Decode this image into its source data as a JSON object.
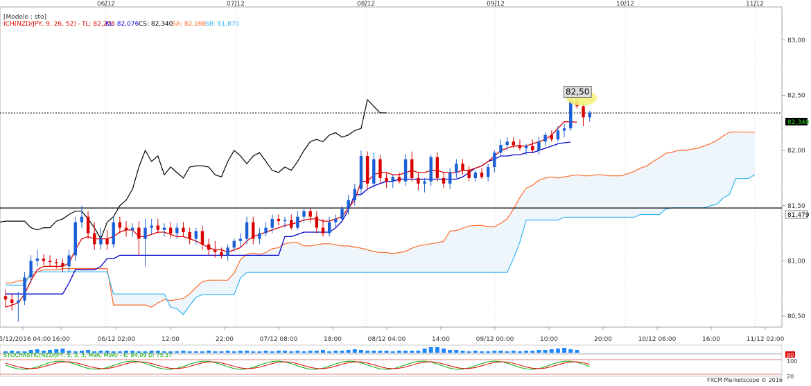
{
  "legend": {
    "model": "[Modele : sto]",
    "ich": "ICH(NZD/JPY, 9, 26, 52)  -",
    "tl": "TL: 82,256",
    "kl": "KL: 82,076",
    "cs": "CS: 82,340",
    "sa": "SA: 82,166",
    "sb": "SB: 81,870"
  },
  "top_dates": [
    "06/12",
    "07/12",
    "08/12",
    "09/12",
    "10/12",
    "11/12"
  ],
  "bottom_times": [
    "05/12/2016 04:00",
    "16:00",
    "06/12 02:00",
    "12:00",
    "22:00",
    "07/12 08:00",
    "18:00",
    "08/12 04:00",
    "14:00",
    "09/12 00:00",
    "10:00",
    "20:00",
    "10/12 06:00",
    "16:00",
    "11/12 02:00"
  ],
  "price_axis": [
    "83,00",
    "82,50",
    "82,00",
    "81,50",
    "81,00",
    "80,50"
  ],
  "current_price": "82,340",
  "hline_price": "81,479",
  "callout": "82,50",
  "stoch": {
    "label": "STOCHASTIC(NZD/JPY, 5, 3, 3, MVA, MVA) -   K: 84,09   D: 75,37",
    "levels": [
      "80",
      "100",
      "20"
    ]
  },
  "footer": "FXCM Marketscope © 2016",
  "colors": {
    "background": "#ffffff",
    "tenkan": "#dd0000",
    "kijun": "#0000cc",
    "chikou": "#000000",
    "senkou_a": "#ff6a2a",
    "senkou_b": "#33b5f0",
    "cloud": "#eef6fc",
    "bull": "#1a5fd6",
    "bear": "#d90000",
    "volume": "#1e88ff",
    "stoch_k": "#00aa00",
    "stoch_d": "#dd0000",
    "callout_bg": "#f2f27a"
  },
  "chart_data": {
    "type": "candlestick",
    "symbol": "NZD/JPY",
    "timeframe": "H1",
    "ylim": [
      80.4,
      83.3
    ],
    "current_price": 82.34,
    "horizontal_line": 81.479,
    "candles": [
      {
        "o": 80.68,
        "h": 80.74,
        "l": 80.58,
        "c": 80.65
      },
      {
        "o": 80.65,
        "h": 80.7,
        "l": 80.55,
        "c": 80.62
      },
      {
        "o": 80.62,
        "h": 80.72,
        "l": 80.45,
        "c": 80.64
      },
      {
        "o": 80.64,
        "h": 80.9,
        "l": 80.6,
        "c": 80.85
      },
      {
        "o": 80.85,
        "h": 81.05,
        "l": 80.8,
        "c": 81.0
      },
      {
        "o": 81.0,
        "h": 81.1,
        "l": 80.95,
        "c": 81.02
      },
      {
        "o": 81.02,
        "h": 81.06,
        "l": 80.96,
        "c": 81.0
      },
      {
        "o": 81.0,
        "h": 81.05,
        "l": 80.95,
        "c": 80.99
      },
      {
        "o": 80.99,
        "h": 81.02,
        "l": 80.93,
        "c": 80.98
      },
      {
        "o": 80.98,
        "h": 81.02,
        "l": 80.9,
        "c": 80.95
      },
      {
        "o": 80.95,
        "h": 81.1,
        "l": 80.9,
        "c": 81.05
      },
      {
        "o": 81.05,
        "h": 81.4,
        "l": 81.0,
        "c": 81.35
      },
      {
        "o": 81.35,
        "h": 81.5,
        "l": 81.3,
        "c": 81.4
      },
      {
        "o": 81.4,
        "h": 81.45,
        "l": 81.2,
        "c": 81.25
      },
      {
        "o": 81.25,
        "h": 81.35,
        "l": 81.1,
        "c": 81.15
      },
      {
        "o": 81.15,
        "h": 81.3,
        "l": 81.1,
        "c": 81.2
      },
      {
        "o": 81.2,
        "h": 81.28,
        "l": 81.1,
        "c": 81.15
      },
      {
        "o": 81.15,
        "h": 81.4,
        "l": 81.12,
        "c": 81.35
      },
      {
        "o": 81.35,
        "h": 81.4,
        "l": 81.25,
        "c": 81.3
      },
      {
        "o": 81.3,
        "h": 81.36,
        "l": 81.22,
        "c": 81.28
      },
      {
        "o": 81.28,
        "h": 81.34,
        "l": 81.22,
        "c": 81.3
      },
      {
        "o": 81.3,
        "h": 81.36,
        "l": 81.05,
        "c": 81.2
      },
      {
        "o": 81.2,
        "h": 81.38,
        "l": 80.95,
        "c": 81.3
      },
      {
        "o": 81.3,
        "h": 81.38,
        "l": 81.24,
        "c": 81.32
      },
      {
        "o": 81.32,
        "h": 81.38,
        "l": 81.25,
        "c": 81.28
      },
      {
        "o": 81.28,
        "h": 81.34,
        "l": 81.22,
        "c": 81.3
      },
      {
        "o": 81.3,
        "h": 81.35,
        "l": 81.2,
        "c": 81.25
      },
      {
        "o": 81.25,
        "h": 81.34,
        "l": 81.2,
        "c": 81.3
      },
      {
        "o": 81.3,
        "h": 81.35,
        "l": 81.22,
        "c": 81.26
      },
      {
        "o": 81.26,
        "h": 81.3,
        "l": 81.15,
        "c": 81.2
      },
      {
        "o": 81.2,
        "h": 81.3,
        "l": 81.15,
        "c": 81.27
      },
      {
        "o": 81.27,
        "h": 81.32,
        "l": 81.1,
        "c": 81.15
      },
      {
        "o": 81.15,
        "h": 81.2,
        "l": 81.05,
        "c": 81.1
      },
      {
        "o": 81.1,
        "h": 81.18,
        "l": 81.03,
        "c": 81.08
      },
      {
        "o": 81.08,
        "h": 81.12,
        "l": 81.02,
        "c": 81.05
      },
      {
        "o": 81.05,
        "h": 81.15,
        "l": 81.0,
        "c": 81.12
      },
      {
        "o": 81.12,
        "h": 81.2,
        "l": 81.08,
        "c": 81.18
      },
      {
        "o": 81.18,
        "h": 81.25,
        "l": 81.12,
        "c": 81.2
      },
      {
        "o": 81.2,
        "h": 81.4,
        "l": 81.15,
        "c": 81.35
      },
      {
        "o": 81.35,
        "h": 81.4,
        "l": 81.15,
        "c": 81.2
      },
      {
        "o": 81.2,
        "h": 81.3,
        "l": 81.15,
        "c": 81.25
      },
      {
        "o": 81.25,
        "h": 81.35,
        "l": 81.22,
        "c": 81.3
      },
      {
        "o": 81.3,
        "h": 81.42,
        "l": 81.25,
        "c": 81.38
      },
      {
        "o": 81.38,
        "h": 81.42,
        "l": 81.32,
        "c": 81.36
      },
      {
        "o": 81.36,
        "h": 81.4,
        "l": 81.3,
        "c": 81.37
      },
      {
        "o": 81.37,
        "h": 81.42,
        "l": 81.28,
        "c": 81.3
      },
      {
        "o": 81.3,
        "h": 81.45,
        "l": 81.28,
        "c": 81.4
      },
      {
        "o": 81.4,
        "h": 81.48,
        "l": 81.35,
        "c": 81.45
      },
      {
        "o": 81.45,
        "h": 81.48,
        "l": 81.35,
        "c": 81.4
      },
      {
        "o": 81.4,
        "h": 81.45,
        "l": 81.25,
        "c": 81.3
      },
      {
        "o": 81.3,
        "h": 81.38,
        "l": 81.22,
        "c": 81.25
      },
      {
        "o": 81.25,
        "h": 81.4,
        "l": 81.22,
        "c": 81.35
      },
      {
        "o": 81.35,
        "h": 81.42,
        "l": 81.3,
        "c": 81.38
      },
      {
        "o": 81.38,
        "h": 81.5,
        "l": 81.35,
        "c": 81.47
      },
      {
        "o": 81.47,
        "h": 81.6,
        "l": 81.42,
        "c": 81.55
      },
      {
        "o": 81.55,
        "h": 81.7,
        "l": 81.5,
        "c": 81.65
      },
      {
        "o": 81.65,
        "h": 82.0,
        "l": 81.6,
        "c": 81.95
      },
      {
        "o": 81.95,
        "h": 81.99,
        "l": 81.65,
        "c": 81.7
      },
      {
        "o": 81.7,
        "h": 81.98,
        "l": 81.66,
        "c": 81.92
      },
      {
        "o": 81.92,
        "h": 81.96,
        "l": 81.7,
        "c": 81.75
      },
      {
        "o": 81.75,
        "h": 81.8,
        "l": 81.66,
        "c": 81.72
      },
      {
        "o": 81.72,
        "h": 81.78,
        "l": 81.66,
        "c": 81.76
      },
      {
        "o": 81.76,
        "h": 81.8,
        "l": 81.7,
        "c": 81.72
      },
      {
        "o": 81.72,
        "h": 81.97,
        "l": 81.68,
        "c": 81.92
      },
      {
        "o": 81.92,
        "h": 81.99,
        "l": 81.72,
        "c": 81.75
      },
      {
        "o": 81.75,
        "h": 81.8,
        "l": 81.64,
        "c": 81.7
      },
      {
        "o": 81.7,
        "h": 81.75,
        "l": 81.62,
        "c": 81.72
      },
      {
        "o": 81.72,
        "h": 81.96,
        "l": 81.68,
        "c": 81.94
      },
      {
        "o": 81.94,
        "h": 81.98,
        "l": 81.72,
        "c": 81.75
      },
      {
        "o": 81.75,
        "h": 81.8,
        "l": 81.66,
        "c": 81.7
      },
      {
        "o": 81.7,
        "h": 81.84,
        "l": 81.65,
        "c": 81.8
      },
      {
        "o": 81.8,
        "h": 81.92,
        "l": 81.75,
        "c": 81.88
      },
      {
        "o": 81.88,
        "h": 81.92,
        "l": 81.78,
        "c": 81.82
      },
      {
        "o": 81.82,
        "h": 81.86,
        "l": 81.72,
        "c": 81.75
      },
      {
        "o": 81.75,
        "h": 81.82,
        "l": 81.72,
        "c": 81.8
      },
      {
        "o": 81.8,
        "h": 81.84,
        "l": 81.74,
        "c": 81.76
      },
      {
        "o": 81.76,
        "h": 81.88,
        "l": 81.72,
        "c": 81.85
      },
      {
        "o": 81.85,
        "h": 82.0,
        "l": 81.8,
        "c": 81.98
      },
      {
        "o": 81.98,
        "h": 82.1,
        "l": 81.95,
        "c": 82.05
      },
      {
        "o": 82.05,
        "h": 82.12,
        "l": 82.0,
        "c": 82.08
      },
      {
        "o": 82.08,
        "h": 82.12,
        "l": 82.02,
        "c": 82.05
      },
      {
        "o": 82.05,
        "h": 82.1,
        "l": 82.0,
        "c": 82.02
      },
      {
        "o": 82.02,
        "h": 82.06,
        "l": 81.96,
        "c": 82.04
      },
      {
        "o": 82.04,
        "h": 82.1,
        "l": 81.98,
        "c": 82.0
      },
      {
        "o": 82.0,
        "h": 82.12,
        "l": 81.96,
        "c": 82.08
      },
      {
        "o": 82.08,
        "h": 82.16,
        "l": 82.04,
        "c": 82.14
      },
      {
        "o": 82.14,
        "h": 82.18,
        "l": 82.08,
        "c": 82.1
      },
      {
        "o": 82.1,
        "h": 82.22,
        "l": 82.08,
        "c": 82.18
      },
      {
        "o": 82.18,
        "h": 82.24,
        "l": 82.12,
        "c": 82.2
      },
      {
        "o": 82.2,
        "h": 82.5,
        "l": 82.18,
        "c": 82.45
      },
      {
        "o": 82.45,
        "h": 82.48,
        "l": 82.38,
        "c": 82.4
      },
      {
        "o": 82.4,
        "h": 82.42,
        "l": 82.22,
        "c": 82.3
      },
      {
        "o": 82.3,
        "h": 82.36,
        "l": 82.26,
        "c": 82.34
      }
    ],
    "tenkan_sen": [
      80.58,
      80.6,
      80.62,
      80.7,
      80.82,
      80.92,
      80.95,
      80.95,
      80.95,
      80.95,
      80.98,
      81.1,
      81.2,
      81.22,
      81.2,
      81.2,
      81.2,
      81.22,
      81.26,
      81.28,
      81.28,
      81.22,
      81.22,
      81.24,
      81.26,
      81.26,
      81.24,
      81.22,
      81.22,
      81.2,
      81.18,
      81.15,
      81.12,
      81.1,
      81.1,
      81.08,
      81.1,
      81.12,
      81.18,
      81.22,
      81.24,
      81.26,
      81.28,
      81.3,
      81.32,
      81.33,
      81.35,
      81.37,
      81.38,
      81.38,
      81.36,
      81.36,
      81.38,
      81.4,
      81.48,
      81.55,
      81.72,
      81.72,
      81.78,
      81.8,
      81.8,
      81.78,
      81.78,
      81.8,
      81.82,
      81.8,
      81.8,
      81.82,
      81.82,
      81.8,
      81.8,
      81.8,
      81.82,
      81.82,
      81.84,
      81.86,
      81.9,
      81.95,
      82.0,
      82.02,
      82.04,
      82.04,
      82.04,
      82.06,
      82.08,
      82.1,
      82.14,
      82.2,
      82.26,
      82.26,
      82.256
    ],
    "kijun_sen": [
      80.7,
      80.7,
      80.7,
      80.7,
      80.7,
      80.7,
      80.7,
      80.7,
      80.7,
      80.7,
      80.8,
      80.92,
      80.92,
      80.92,
      80.92,
      80.95,
      81.02,
      81.02,
      81.05,
      81.05,
      81.05,
      81.05,
      81.05,
      81.05,
      81.05,
      81.05,
      81.05,
      81.05,
      81.05,
      81.05,
      81.05,
      81.05,
      81.05,
      81.05,
      81.05,
      81.05,
      81.05,
      81.05,
      81.05,
      81.05,
      81.05,
      81.05,
      81.05,
      81.05,
      81.22,
      81.22,
      81.24,
      81.26,
      81.26,
      81.26,
      81.26,
      81.26,
      81.3,
      81.36,
      81.46,
      81.6,
      81.6,
      81.65,
      81.68,
      81.7,
      81.72,
      81.72,
      81.74,
      81.74,
      81.74,
      81.74,
      81.74,
      81.74,
      81.74,
      81.74,
      81.74,
      81.74,
      81.76,
      81.8,
      81.84,
      81.86,
      81.9,
      81.92,
      81.95,
      81.95,
      81.96,
      81.96,
      81.98,
      81.98,
      82.0,
      82.02,
      82.04,
      82.06,
      82.07,
      82.076
    ],
    "chikou_span": [
      81.25,
      81.22,
      81.2,
      81.24,
      81.18,
      81.22,
      81.26,
      81.22,
      81.3,
      81.26,
      81.3,
      81.3,
      81.34,
      81.33,
      81.35,
      81.34,
      81.35,
      81.36,
      81.36,
      81.36,
      81.36,
      81.3,
      81.28,
      81.3,
      81.3,
      81.36,
      81.38,
      81.42,
      81.45,
      81.45,
      81.38,
      81.3,
      81.2,
      81.35,
      81.4,
      81.5,
      81.55,
      81.65,
      81.85,
      82.0,
      81.9,
      81.95,
      81.78,
      81.85,
      81.8,
      81.75,
      81.85,
      81.86,
      81.86,
      81.85,
      81.78,
      81.76,
      81.9,
      82.0,
      81.95,
      81.88,
      81.95,
      81.98,
      81.9,
      81.82,
      81.8,
      81.85,
      81.82,
      81.9,
      82.0,
      82.08,
      82.1,
      82.08,
      82.14,
      82.16,
      82.12,
      82.14,
      82.18,
      82.2,
      82.46,
      82.4,
      82.34,
      82.34
    ]
  }
}
